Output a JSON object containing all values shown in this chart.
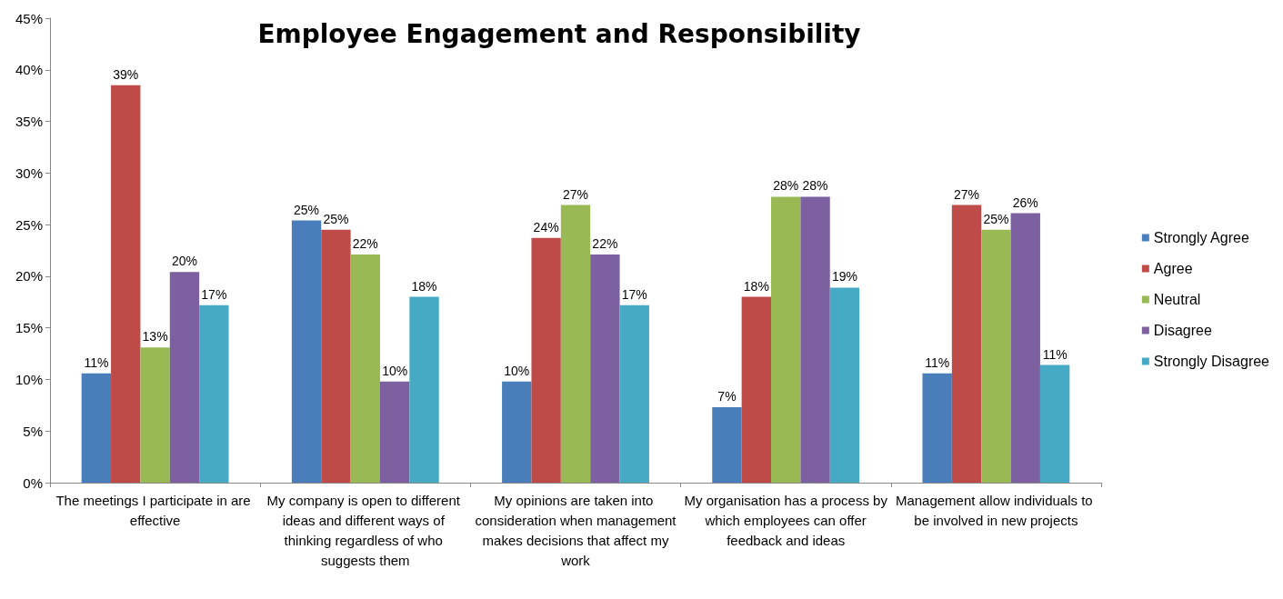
{
  "chart_data": {
    "type": "bar",
    "title": "Employee Engagement and Responsibility",
    "categories": [
      "The meetings I participate in are effective",
      "My company is open to different ideas and different ways of thinking regardless of who suggests them",
      "My opinions are taken into consideration when management makes decisions that affect my work",
      "My organisation has a process by which employees can offer feedback and ideas",
      "Management allow individuals to be involved in new projects"
    ],
    "series": [
      {
        "name": "Strongly Agree",
        "color": "#4a7ebb",
        "values": [
          10.6,
          25.4,
          9.8,
          7.3,
          10.6
        ],
        "value_labels": [
          "11%",
          "25%",
          "10%",
          "7%",
          "11%"
        ]
      },
      {
        "name": "Agree",
        "color": "#be4b48",
        "values": [
          38.5,
          24.5,
          23.7,
          18.0,
          26.9
        ],
        "value_labels": [
          "39%",
          "25%",
          "24%",
          "18%",
          "27%"
        ]
      },
      {
        "name": "Neutral",
        "color": "#98b954",
        "values": [
          13.1,
          22.1,
          26.9,
          27.7,
          24.5
        ],
        "value_labels": [
          "13%",
          "22%",
          "27%",
          "28%",
          "25%"
        ]
      },
      {
        "name": "Disagree",
        "color": "#7d60a0",
        "values": [
          20.4,
          9.8,
          22.1,
          27.7,
          26.1
        ],
        "value_labels": [
          "20%",
          "10%",
          "22%",
          "28%",
          "26%"
        ]
      },
      {
        "name": "Strongly Disagree",
        "color": "#46aac5",
        "values": [
          17.2,
          18.0,
          17.2,
          18.9,
          11.4
        ],
        "value_labels": [
          "17%",
          "18%",
          "17%",
          "19%",
          "11%"
        ]
      }
    ],
    "ylim": [
      0,
      45
    ],
    "yticks": [
      {
        "value": 0,
        "label": "0%"
      },
      {
        "value": 5,
        "label": "5%"
      },
      {
        "value": 10,
        "label": "10%"
      },
      {
        "value": 15,
        "label": "15%"
      },
      {
        "value": 20,
        "label": "20%"
      },
      {
        "value": 25,
        "label": "25%"
      },
      {
        "value": 30,
        "label": "30%"
      },
      {
        "value": 35,
        "label": "35%"
      },
      {
        "value": 40,
        "label": "40%"
      },
      {
        "value": 45,
        "label": "45%"
      }
    ],
    "grid": false,
    "legend": "right"
  }
}
